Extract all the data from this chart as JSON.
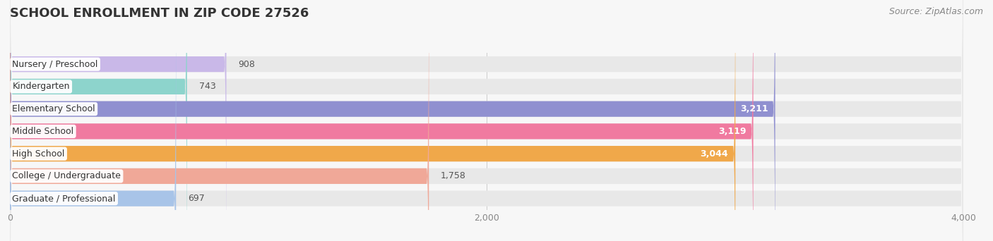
{
  "title": "SCHOOL ENROLLMENT IN ZIP CODE 27526",
  "source": "Source: ZipAtlas.com",
  "categories": [
    "Nursery / Preschool",
    "Kindergarten",
    "Elementary School",
    "Middle School",
    "High School",
    "College / Undergraduate",
    "Graduate / Professional"
  ],
  "values": [
    908,
    743,
    3211,
    3119,
    3044,
    1758,
    697
  ],
  "bar_colors": [
    "#c9b8e8",
    "#8dd4cc",
    "#9090d0",
    "#f07aA0",
    "#f0a84a",
    "#f0a898",
    "#a8c4e8"
  ],
  "background_color": "#f7f7f7",
  "bar_bg_color": "#e8e8e8",
  "xlim": [
    0,
    4000
  ],
  "xticks": [
    0,
    2000,
    4000
  ],
  "title_fontsize": 13,
  "label_fontsize": 9,
  "value_fontsize": 9,
  "source_fontsize": 9
}
